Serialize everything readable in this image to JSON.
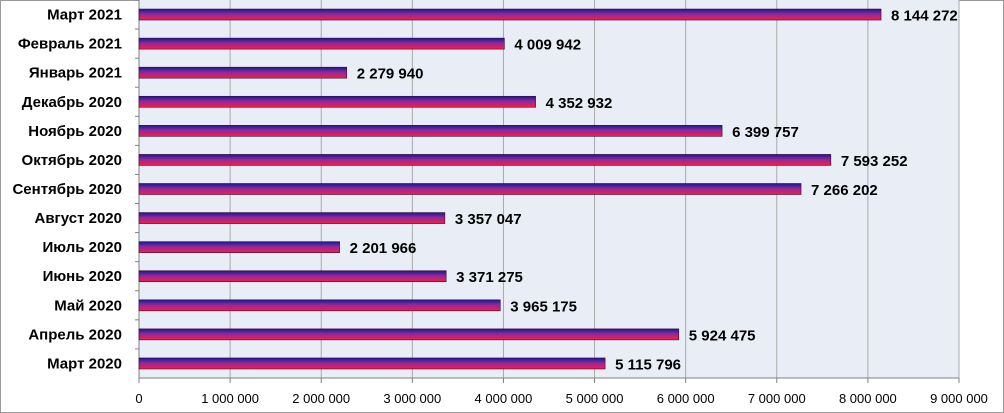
{
  "chart_data": {
    "type": "bar",
    "orientation": "horizontal",
    "categories": [
      "Март 2021",
      "Февраль 2021",
      "Январь  2021",
      "Декабрь  2020",
      "Ноябрь  2020",
      "Октябрь  2020",
      "Сентябрь 2020",
      "Август 2020",
      "Июль 2020",
      "Июнь 2020",
      "Май 2020",
      "Апрель 2020",
      "Март 2020"
    ],
    "values": [
      8144272,
      4009942,
      2279940,
      4352932,
      6399757,
      7593252,
      7266202,
      3357047,
      2201966,
      3371275,
      3965175,
      5924475,
      5115796
    ],
    "value_labels": [
      "8 144 272",
      "4 009 942",
      "2 279 940",
      "4 352 932",
      "6 399 757",
      "7 593 252",
      "7 266 202",
      "3 357 047",
      "2 201 966",
      "3 371 275",
      "3 965 175",
      "5 924 475",
      "5 115 796"
    ],
    "xlim": [
      0,
      9000000
    ],
    "x_ticks": [
      0,
      1000000,
      2000000,
      3000000,
      4000000,
      5000000,
      6000000,
      7000000,
      8000000,
      9000000
    ],
    "x_tick_labels": [
      "0",
      "1 000 000",
      "2 000 000",
      "3 000 000",
      "4 000 000",
      "5 000 000",
      "6 000 000",
      "7 000 000",
      "8 000 000",
      "9 000 000"
    ],
    "grid": true,
    "legend": "none",
    "colors": {
      "plot_background": "#e9edf6",
      "bar_top": "#1a1a8c",
      "bar_mid": "#8a2aa0",
      "bar_bottom": "#ff1a40",
      "gridline": "#a9a9a9"
    }
  }
}
